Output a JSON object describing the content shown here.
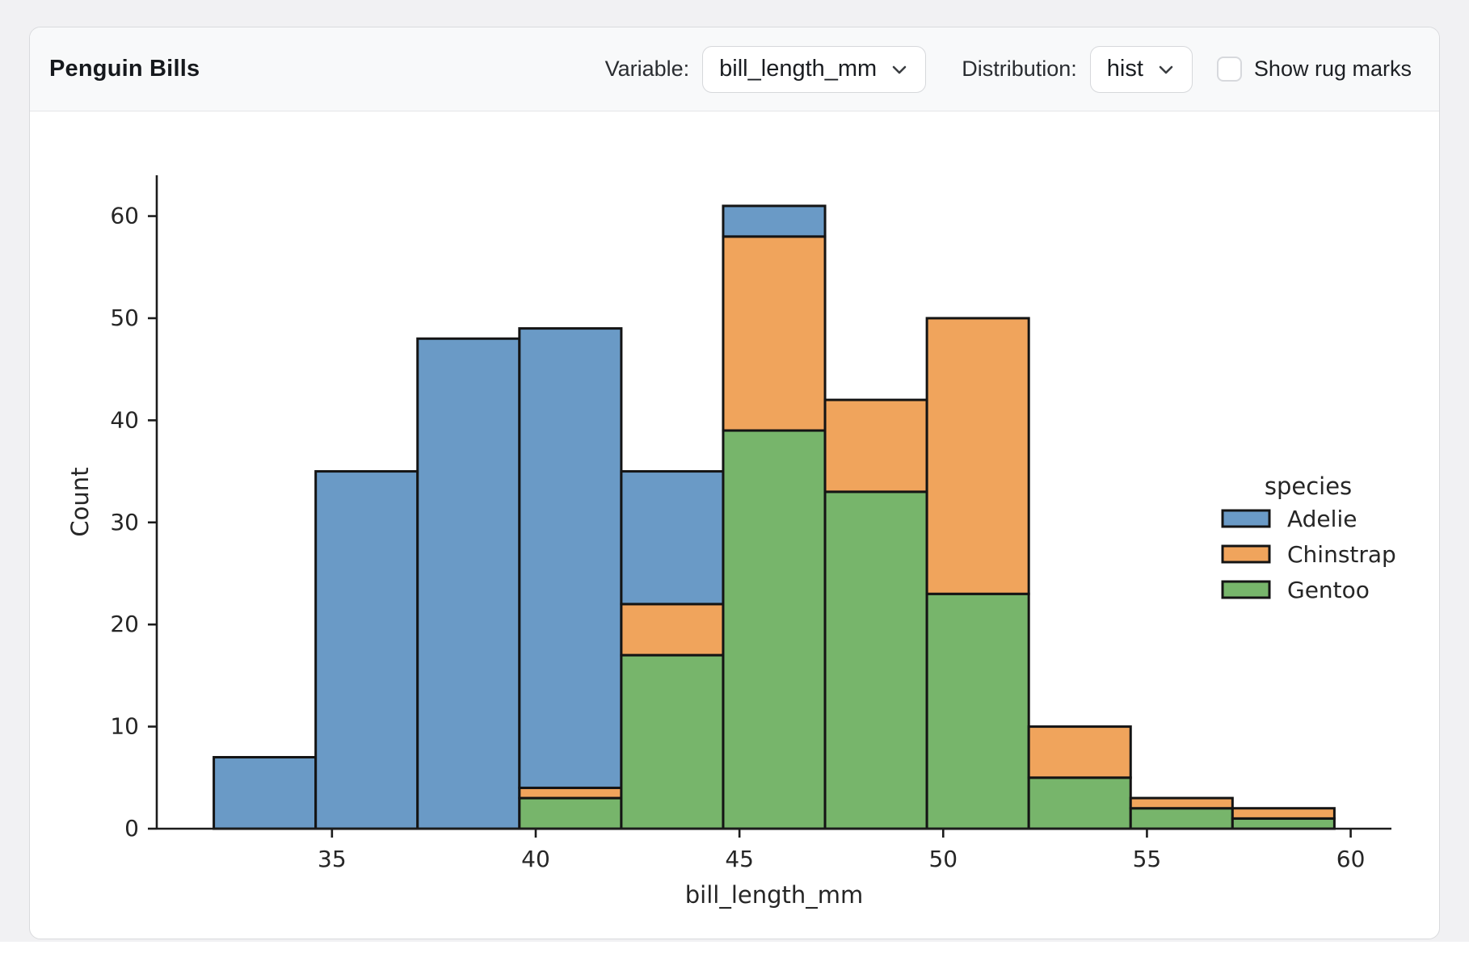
{
  "header": {
    "title": "Penguin Bills",
    "variable_label": "Variable:",
    "variable_value": "bill_length_mm",
    "distribution_label": "Distribution:",
    "distribution_value": "hist",
    "rug_label": "Show rug marks",
    "rug_checked": false
  },
  "chart_data": {
    "type": "bar",
    "subtype": "stacked_histogram",
    "title": "",
    "xlabel": "bill_length_mm",
    "ylabel": "Count",
    "legend_title": "species",
    "legend_entries": [
      {
        "label": "Adelie",
        "color": "#6a9ac6"
      },
      {
        "label": "Chinstrap",
        "color": "#f0a45c"
      },
      {
        "label": "Gentoo",
        "color": "#77b56b"
      }
    ],
    "bin_edges": [
      32.1,
      34.6,
      37.1,
      39.6,
      42.1,
      44.6,
      47.1,
      49.6,
      52.1,
      54.6,
      57.1,
      59.6
    ],
    "series": [
      {
        "name": "Gentoo",
        "color": "#77b56b",
        "values": [
          0,
          0,
          0,
          3,
          17,
          39,
          33,
          23,
          5,
          2,
          1
        ]
      },
      {
        "name": "Chinstrap",
        "color": "#f0a45c",
        "values": [
          0,
          0,
          0,
          1,
          5,
          19,
          9,
          27,
          5,
          1,
          1
        ]
      },
      {
        "name": "Adelie",
        "color": "#6a9ac6",
        "values": [
          7,
          35,
          48,
          45,
          13,
          3,
          0,
          0,
          0,
          0,
          0
        ]
      }
    ],
    "bin_totals": [
      7,
      35,
      48,
      49,
      35,
      61,
      42,
      50,
      10,
      3,
      2
    ],
    "x_ticks": [
      35,
      40,
      45,
      50,
      55,
      60
    ],
    "y_ticks": [
      0,
      10,
      20,
      30,
      40,
      50,
      60
    ],
    "xlim": [
      30.7,
      61.0
    ],
    "ylim": [
      0,
      64
    ],
    "grid": false,
    "legend_position": "right",
    "bar_edge_color": "#141414",
    "axis_color": "#1c1c1c"
  }
}
